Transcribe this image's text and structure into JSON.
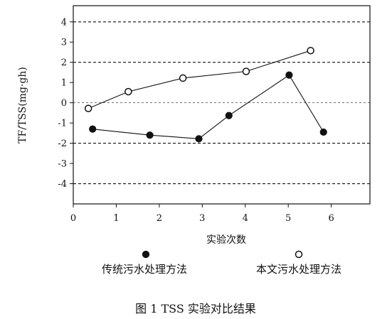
{
  "chart_data": {
    "type": "line",
    "title": "",
    "xlabel": "实验次数",
    "ylabel": "TF/TSS(mg·gh)",
    "xlim": [
      0,
      6.9
    ],
    "ylim": [
      -5,
      4.8
    ],
    "x_ticks": [
      0,
      1,
      2,
      3,
      4,
      5,
      6
    ],
    "y_ticks": [
      4,
      3,
      2,
      1,
      0,
      -1,
      -2,
      -3,
      -4
    ],
    "dashed_reference_lines": [
      4,
      2,
      0,
      -2,
      -4
    ],
    "dashed_major_lines": [
      4,
      2,
      -2,
      -4
    ],
    "grid": false,
    "legend_position": "bottom",
    "series": [
      {
        "name": "传统污水处理方法",
        "marker": "filled-circle",
        "color": "#111111",
        "x": [
          0.45,
          1.78,
          2.92,
          3.62,
          5.02,
          5.82
        ],
        "y": [
          -1.3,
          -1.6,
          -1.78,
          -0.63,
          1.37,
          -1.45
        ]
      },
      {
        "name": "本文污水处理方法",
        "marker": "open-circle",
        "color": "#111111",
        "x": [
          0.35,
          1.28,
          2.55,
          4.02,
          5.52
        ],
        "y": [
          -0.28,
          0.55,
          1.22,
          1.55,
          2.58
        ]
      }
    ]
  },
  "caption": "图 1 TSS 实验对比结果"
}
